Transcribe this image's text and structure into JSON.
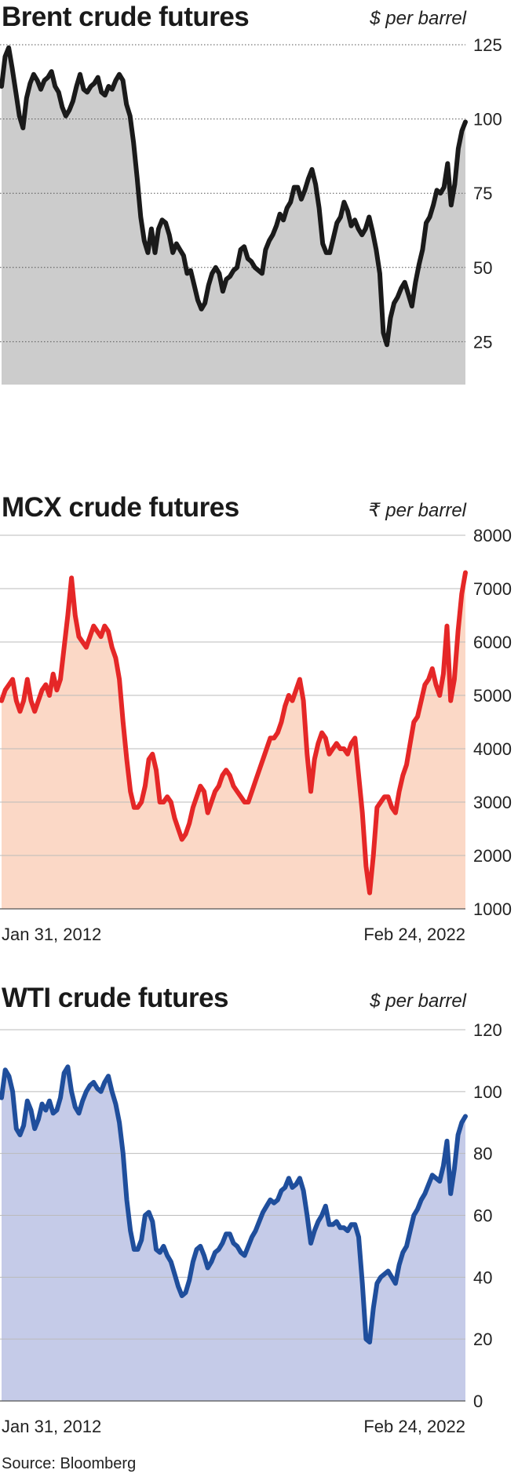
{
  "chart_data": [
    {
      "type": "area",
      "title": "Brent crude futures",
      "unit": "$ per barrel",
      "ylim": [
        0,
        125
      ],
      "yticks": [
        0,
        25,
        50,
        75,
        100,
        125
      ],
      "x_start_label": "Jan 31, 2012",
      "x_end_label": "Feb 24, 2022",
      "line_color": "#1a1a1a",
      "fill_color": "#cccccc",
      "grid": "dotted",
      "values": [
        111,
        121,
        124,
        117,
        109,
        101,
        97,
        107,
        112,
        115,
        113,
        110,
        113,
        114,
        116,
        111,
        109,
        104,
        101,
        103,
        106,
        111,
        115,
        110,
        109,
        111,
        112,
        114,
        109,
        108,
        111,
        110,
        113,
        115,
        113,
        105,
        101,
        92,
        80,
        67,
        59,
        55,
        63,
        55,
        63,
        66,
        65,
        61,
        55,
        58,
        56,
        54,
        48,
        49,
        44,
        39,
        36,
        38,
        44,
        48,
        50,
        48,
        42,
        46,
        47,
        49,
        50,
        56,
        57,
        53,
        52,
        50,
        49,
        48,
        56,
        59,
        61,
        64,
        68,
        66,
        70,
        72,
        77,
        77,
        73,
        76,
        80,
        83,
        78,
        70,
        58,
        55,
        55,
        60,
        65,
        67,
        72,
        69,
        64,
        66,
        63,
        61,
        63,
        67,
        62,
        56,
        48,
        28,
        24,
        33,
        38,
        40,
        43,
        45,
        41,
        37,
        45,
        51,
        56,
        65,
        67,
        71,
        76,
        75,
        77,
        85,
        71,
        78,
        90,
        96,
        99
      ]
    },
    {
      "type": "area",
      "title": "MCX crude futures",
      "unit": "₹ per barrel",
      "ylim": [
        1000,
        8000
      ],
      "yticks": [
        1000,
        2000,
        3000,
        4000,
        5000,
        6000,
        7000,
        8000
      ],
      "x_start_label": "Jan 31, 2012",
      "x_end_label": "Feb 24, 2022",
      "line_color": "#e52727",
      "fill_color": "#fbd8c6",
      "grid": "solid",
      "values": [
        4900,
        5100,
        5200,
        5300,
        4900,
        4700,
        4900,
        5300,
        4900,
        4700,
        4900,
        5100,
        5200,
        5000,
        5400,
        5100,
        5300,
        5900,
        6500,
        7200,
        6500,
        6100,
        6000,
        5900,
        6100,
        6300,
        6200,
        6100,
        6300,
        6200,
        5900,
        5700,
        5300,
        4500,
        3800,
        3200,
        2900,
        2900,
        3000,
        3300,
        3800,
        3900,
        3600,
        3000,
        3000,
        3100,
        3000,
        2700,
        2500,
        2300,
        2400,
        2600,
        2900,
        3100,
        3300,
        3200,
        2800,
        3000,
        3200,
        3300,
        3500,
        3600,
        3500,
        3300,
        3200,
        3100,
        3000,
        3000,
        3200,
        3400,
        3600,
        3800,
        4000,
        4200,
        4200,
        4300,
        4500,
        4800,
        5000,
        4900,
        5100,
        5300,
        4900,
        3900,
        3200,
        3800,
        4100,
        4300,
        4200,
        3900,
        4000,
        4100,
        4000,
        4000,
        3900,
        4100,
        4200,
        3500,
        2800,
        1800,
        1300,
        2000,
        2900,
        3000,
        3100,
        3100,
        2900,
        2800,
        3200,
        3500,
        3700,
        4100,
        4500,
        4600,
        4900,
        5200,
        5300,
        5500,
        5200,
        5000,
        5400,
        6300,
        4900,
        5300,
        6200,
        6900,
        7300
      ]
    },
    {
      "type": "area",
      "title": "WTI crude futures",
      "unit": "$ per barrel",
      "ylim": [
        0,
        120
      ],
      "yticks": [
        0,
        20,
        40,
        60,
        80,
        100,
        120
      ],
      "x_start_label": "Jan 31, 2012",
      "x_end_label": "Feb 24, 2022",
      "line_color": "#1f4e9c",
      "fill_color": "#c5cbe8",
      "grid": "solid",
      "values": [
        98,
        107,
        105,
        100,
        88,
        86,
        89,
        97,
        94,
        88,
        91,
        96,
        94,
        97,
        93,
        94,
        98,
        106,
        108,
        100,
        95,
        93,
        97,
        100,
        102,
        103,
        101,
        100,
        103,
        105,
        100,
        96,
        90,
        80,
        65,
        55,
        49,
        49,
        52,
        60,
        61,
        58,
        49,
        48,
        50,
        47,
        45,
        41,
        37,
        34,
        35,
        39,
        45,
        49,
        50,
        47,
        43,
        45,
        48,
        49,
        51,
        54,
        54,
        51,
        50,
        48,
        47,
        50,
        53,
        55,
        58,
        61,
        63,
        65,
        64,
        65,
        68,
        69,
        72,
        69,
        70,
        72,
        68,
        60,
        51,
        55,
        58,
        60,
        63,
        57,
        57,
        58,
        56,
        56,
        55,
        57,
        57,
        53,
        38,
        20,
        19,
        30,
        38,
        40,
        41,
        42,
        40,
        38,
        44,
        48,
        50,
        55,
        60,
        62,
        65,
        67,
        70,
        73,
        72,
        71,
        76,
        84,
        67,
        75,
        86,
        90,
        92
      ]
    }
  ],
  "source": "Source: Bloomberg"
}
